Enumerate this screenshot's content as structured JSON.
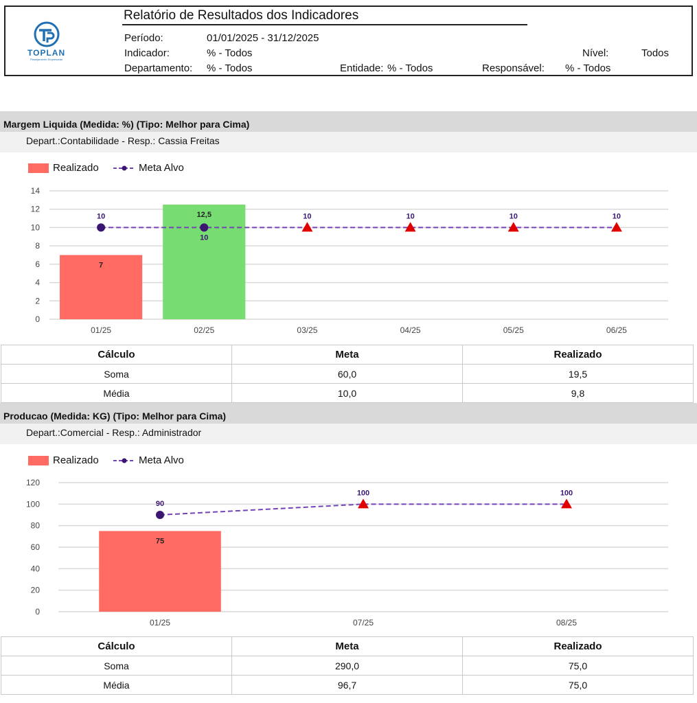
{
  "header": {
    "title": "Relatório de Resultados dos Indicadores",
    "logo_name": "TOPLAN",
    "logo_sub": "Planejamento Empresarial",
    "periodo_label": "Período:",
    "periodo_value": "01/01/2025 - 31/12/2025",
    "indicador_label": "Indicador:",
    "indicador_value": "% - Todos",
    "nivel_label": "Nível:",
    "nivel_value": "Todos",
    "departamento_label": "Departamento:",
    "departamento_value": "% - Todos",
    "entidade_label": "Entidade:",
    "entidade_value": "% - Todos",
    "responsavel_label": "Responsável:",
    "responsavel_value": "% - Todos"
  },
  "sections": [
    {
      "title": "Margem Liquida (Medida: %)   (Tipo: Melhor para Cima)",
      "subtitle": "Depart.:Contabilidade  -  Resp.: Cassia Freitas",
      "legend_realizado": "Realizado",
      "legend_meta": "Meta Alvo",
      "table": {
        "headers": [
          "Cálculo",
          "Meta",
          "Realizado"
        ],
        "rows": [
          [
            "Soma",
            "60,0",
            "19,5"
          ],
          [
            "Média",
            "10,0",
            "9,8"
          ]
        ]
      }
    },
    {
      "title": "Producao (Medida: KG)   (Tipo: Melhor para Cima)",
      "subtitle": "Depart.:Comercial  -  Resp.: Administrador",
      "legend_realizado": "Realizado",
      "legend_meta": "Meta Alvo",
      "table": {
        "headers": [
          "Cálculo",
          "Meta",
          "Realizado"
        ],
        "rows": [
          [
            "Soma",
            "290,0",
            "75,0"
          ],
          [
            "Média",
            "96,7",
            "75,0"
          ]
        ]
      }
    }
  ],
  "chart_data": [
    {
      "type": "bar",
      "categories": [
        "01/25",
        "02/25",
        "03/25",
        "04/25",
        "05/25",
        "06/25"
      ],
      "ylim": [
        0,
        14
      ],
      "yticks": [
        "0",
        "2",
        "4",
        "6",
        "8",
        "10",
        "12",
        "14"
      ],
      "series": [
        {
          "name": "Realizado",
          "type": "bar",
          "values": [
            7,
            12.5,
            null,
            null,
            null,
            null
          ],
          "labels": [
            "7",
            "12,5",
            "",
            "",
            "",
            ""
          ],
          "colors": [
            "#ff6a63",
            "#77dc72",
            null,
            null,
            null,
            null
          ]
        },
        {
          "name": "Meta Alvo",
          "type": "line",
          "values": [
            10,
            10,
            10,
            10,
            10,
            10
          ],
          "labels": [
            "10",
            "10",
            "10",
            "10",
            "10",
            "10"
          ],
          "markers": [
            "circle",
            "circle",
            "triangle",
            "triangle",
            "triangle",
            "triangle"
          ]
        }
      ],
      "grid": true,
      "legend": "top-left",
      "colors": {
        "meta_line": "#7442b8",
        "circle": "#3b1670",
        "triangle": "#e00000"
      }
    },
    {
      "type": "bar",
      "categories": [
        "01/25",
        "07/25",
        "08/25"
      ],
      "ylim": [
        0,
        120
      ],
      "yticks": [
        "0",
        "20",
        "40",
        "60",
        "80",
        "100",
        "120"
      ],
      "series": [
        {
          "name": "Realizado",
          "type": "bar",
          "values": [
            75,
            null,
            null
          ],
          "labels": [
            "75",
            "",
            ""
          ],
          "colors": [
            "#ff6a63",
            null,
            null
          ]
        },
        {
          "name": "Meta Alvo",
          "type": "line",
          "values": [
            90,
            100,
            100
          ],
          "labels": [
            "90",
            "100",
            "100"
          ],
          "markers": [
            "circle",
            "triangle",
            "triangle"
          ]
        }
      ],
      "grid": true,
      "legend": "top-left",
      "colors": {
        "meta_line": "#7442b8",
        "circle": "#3b1670",
        "triangle": "#e00000"
      }
    }
  ]
}
